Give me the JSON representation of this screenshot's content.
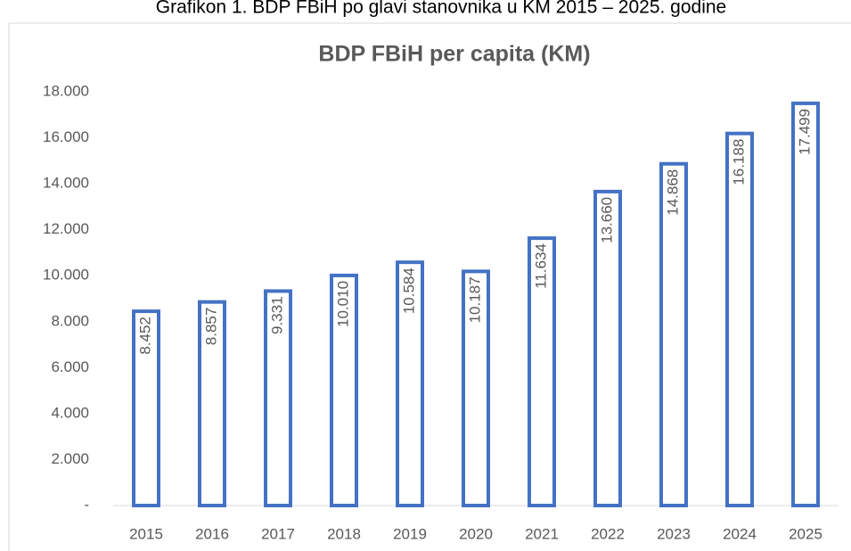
{
  "caption": "Grafikon 1. BDP FBiH po glavi stanovnika u KM 2015 – 2025. godine",
  "chart_data": {
    "type": "bar",
    "title": "BDP FBiH per capita (KM)",
    "categories": [
      "2015",
      "2016",
      "2017",
      "2018",
      "2019",
      "2020",
      "2021",
      "2022",
      "2023",
      "2024",
      "2025"
    ],
    "values": [
      8452,
      8857,
      9331,
      10010,
      10584,
      10187,
      11634,
      13660,
      14868,
      16188,
      17499
    ],
    "value_labels": [
      "8.452",
      "8.857",
      "9.331",
      "10.010",
      "10.584",
      "10.187",
      "11.634",
      "13.660",
      "14.868",
      "16.188",
      "17.499"
    ],
    "color": "#4472c4",
    "ylim": [
      0,
      18000
    ],
    "yticks": [
      {
        "value": 0,
        "label": "-"
      },
      {
        "value": 2000,
        "label": "2.000"
      },
      {
        "value": 4000,
        "label": "4.000"
      },
      {
        "value": 6000,
        "label": "6.000"
      },
      {
        "value": 8000,
        "label": "8.000"
      },
      {
        "value": 10000,
        "label": "10.000"
      },
      {
        "value": 12000,
        "label": "12.000"
      },
      {
        "value": 14000,
        "label": "14.000"
      },
      {
        "value": 16000,
        "label": "16.000"
      },
      {
        "value": 18000,
        "label": "18.000"
      }
    ],
    "grid": false
  }
}
